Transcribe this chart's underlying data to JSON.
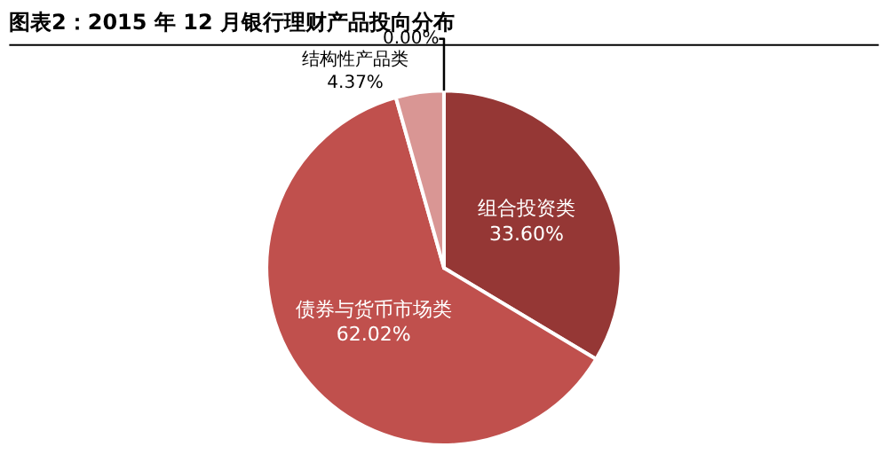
{
  "chart_data": {
    "type": "pie",
    "title": "图表2：2015 年 12 月银行理财产品投向分布",
    "categories": [
      "组合投资类",
      "债券与货币市场类",
      "结构性产品类",
      null
    ],
    "values": [
      33.6,
      62.02,
      4.37,
      0.004
    ],
    "value_labels": [
      "33.60%",
      "62.02%",
      "4.37%",
      "0.00%"
    ],
    "colors": [
      "#953735",
      "#c0504d",
      "#d99694",
      "#e6b9b8"
    ],
    "legend": false
  }
}
